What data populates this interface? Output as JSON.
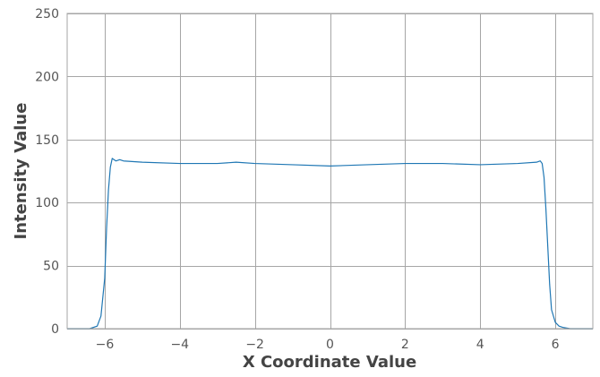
{
  "chart_data": {
    "type": "line",
    "title": "",
    "xlabel": "X Coordinate Value",
    "ylabel": "Intensity Value",
    "xlim": [
      -7,
      7
    ],
    "ylim": [
      0,
      250
    ],
    "grid": true,
    "legend": "none",
    "x_ticks": [
      -6,
      -4,
      -2,
      0,
      2,
      4,
      6
    ],
    "x_tick_labels": [
      "−6",
      "−4",
      "−2",
      "0",
      "2",
      "4",
      "6"
    ],
    "y_ticks": [
      0,
      50,
      100,
      150,
      200,
      250
    ],
    "y_tick_labels": [
      "0",
      "50",
      "100",
      "150",
      "200",
      "250"
    ],
    "series": [
      {
        "color": "#1f77b4",
        "x": [
          -7.0,
          -6.4,
          -6.2,
          -6.1,
          -6.0,
          -5.95,
          -5.9,
          -5.85,
          -5.8,
          -5.75,
          -5.7,
          -5.6,
          -5.5,
          -5.0,
          -4.0,
          -3.0,
          -2.5,
          -2.0,
          -1.0,
          0.0,
          1.0,
          2.0,
          3.0,
          4.0,
          5.0,
          5.5,
          5.6,
          5.65,
          5.7,
          5.75,
          5.8,
          5.85,
          5.9,
          6.0,
          6.1,
          6.2,
          6.4,
          7.0
        ],
        "y": [
          0,
          0,
          2,
          10,
          40,
          80,
          110,
          128,
          135,
          134,
          133,
          134,
          133,
          132,
          131,
          131,
          132,
          131,
          130,
          129,
          130,
          131,
          131,
          130,
          131,
          132,
          133,
          131,
          120,
          95,
          65,
          35,
          15,
          5,
          2,
          1,
          0,
          0
        ]
      }
    ]
  }
}
